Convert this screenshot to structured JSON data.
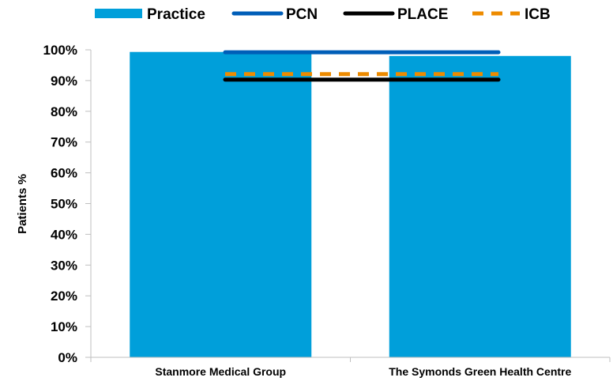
{
  "chart_data": {
    "type": "bar",
    "title": "",
    "xlabel": "",
    "ylabel": "Patients %",
    "ylim": [
      0,
      100
    ],
    "y_ticks": [
      "0%",
      "10%",
      "20%",
      "30%",
      "40%",
      "50%",
      "60%",
      "70%",
      "80%",
      "90%",
      "100%"
    ],
    "grid": false,
    "legend_position": "top",
    "categories": [
      "Stanmore Medical Group",
      "The Symonds Green Health Centre"
    ],
    "series": [
      {
        "name": "Practice",
        "kind": "bar",
        "color": "#009FDA",
        "values": [
          99.3,
          98.0
        ]
      },
      {
        "name": "PCN",
        "kind": "line",
        "style": "solid",
        "color": "#005EB8",
        "values": [
          99.2,
          99.2
        ]
      },
      {
        "name": "PLACE",
        "kind": "line",
        "style": "solid",
        "color": "#000000",
        "values": [
          90.3,
          90.3
        ]
      },
      {
        "name": "ICB",
        "kind": "line",
        "style": "dashed",
        "color": "#ED8B00",
        "values": [
          92.1,
          92.1
        ]
      }
    ]
  }
}
